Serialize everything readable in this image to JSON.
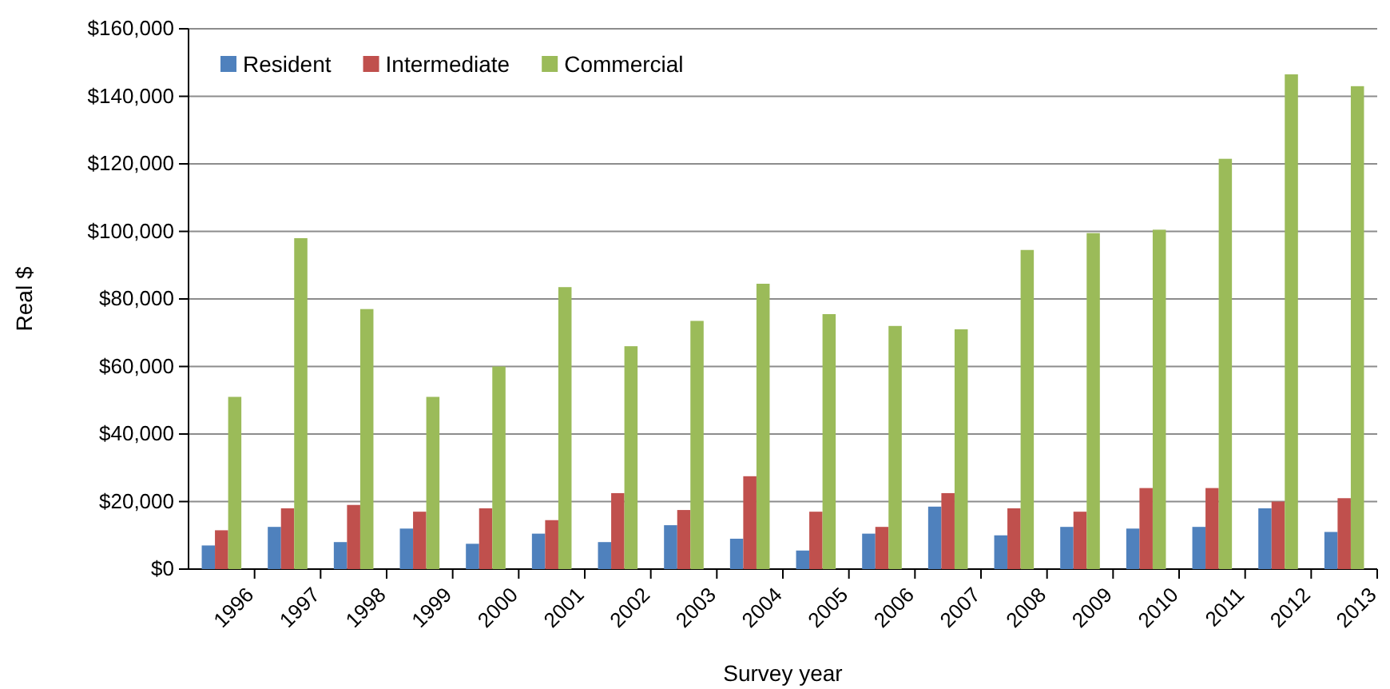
{
  "chart_data": {
    "type": "bar",
    "xlabel": "Survey year",
    "ylabel": "Real $",
    "categories": [
      "1996",
      "1997",
      "1998",
      "1999",
      "2000",
      "2001",
      "2002",
      "2003",
      "2004",
      "2005",
      "2006",
      "2007",
      "2008",
      "2009",
      "2010",
      "2011",
      "2012",
      "2013"
    ],
    "series": [
      {
        "name": "Resident",
        "color": "#4f81bd",
        "values": [
          7000,
          12500,
          8000,
          12000,
          7500,
          10500,
          8000,
          13000,
          9000,
          5500,
          10500,
          18500,
          10000,
          12500,
          12000,
          12500,
          18000,
          11000
        ]
      },
      {
        "name": "Intermediate",
        "color": "#c0504d",
        "values": [
          11500,
          18000,
          19000,
          17000,
          18000,
          14500,
          22500,
          17500,
          27500,
          17000,
          12500,
          22500,
          18000,
          17000,
          24000,
          24000,
          20000,
          21000
        ]
      },
      {
        "name": "Commercial",
        "color": "#9bbb59",
        "values": [
          51000,
          98000,
          77000,
          51000,
          60000,
          83500,
          66000,
          73500,
          84500,
          75500,
          72000,
          71000,
          94500,
          99500,
          100500,
          121500,
          146500,
          143000
        ]
      }
    ],
    "ylim": [
      0,
      160000
    ],
    "yticks": [
      {
        "value": 0,
        "label": "$0"
      },
      {
        "value": 20000,
        "label": "$20,000"
      },
      {
        "value": 40000,
        "label": "$40,000"
      },
      {
        "value": 60000,
        "label": "$60,000"
      },
      {
        "value": 80000,
        "label": "$80,000"
      },
      {
        "value": 100000,
        "label": "$100,000"
      },
      {
        "value": 120000,
        "label": "$120,000"
      },
      {
        "value": 140000,
        "label": "$140,000"
      },
      {
        "value": 160000,
        "label": "$160,000"
      }
    ],
    "grid": "y",
    "legend": "top left"
  }
}
